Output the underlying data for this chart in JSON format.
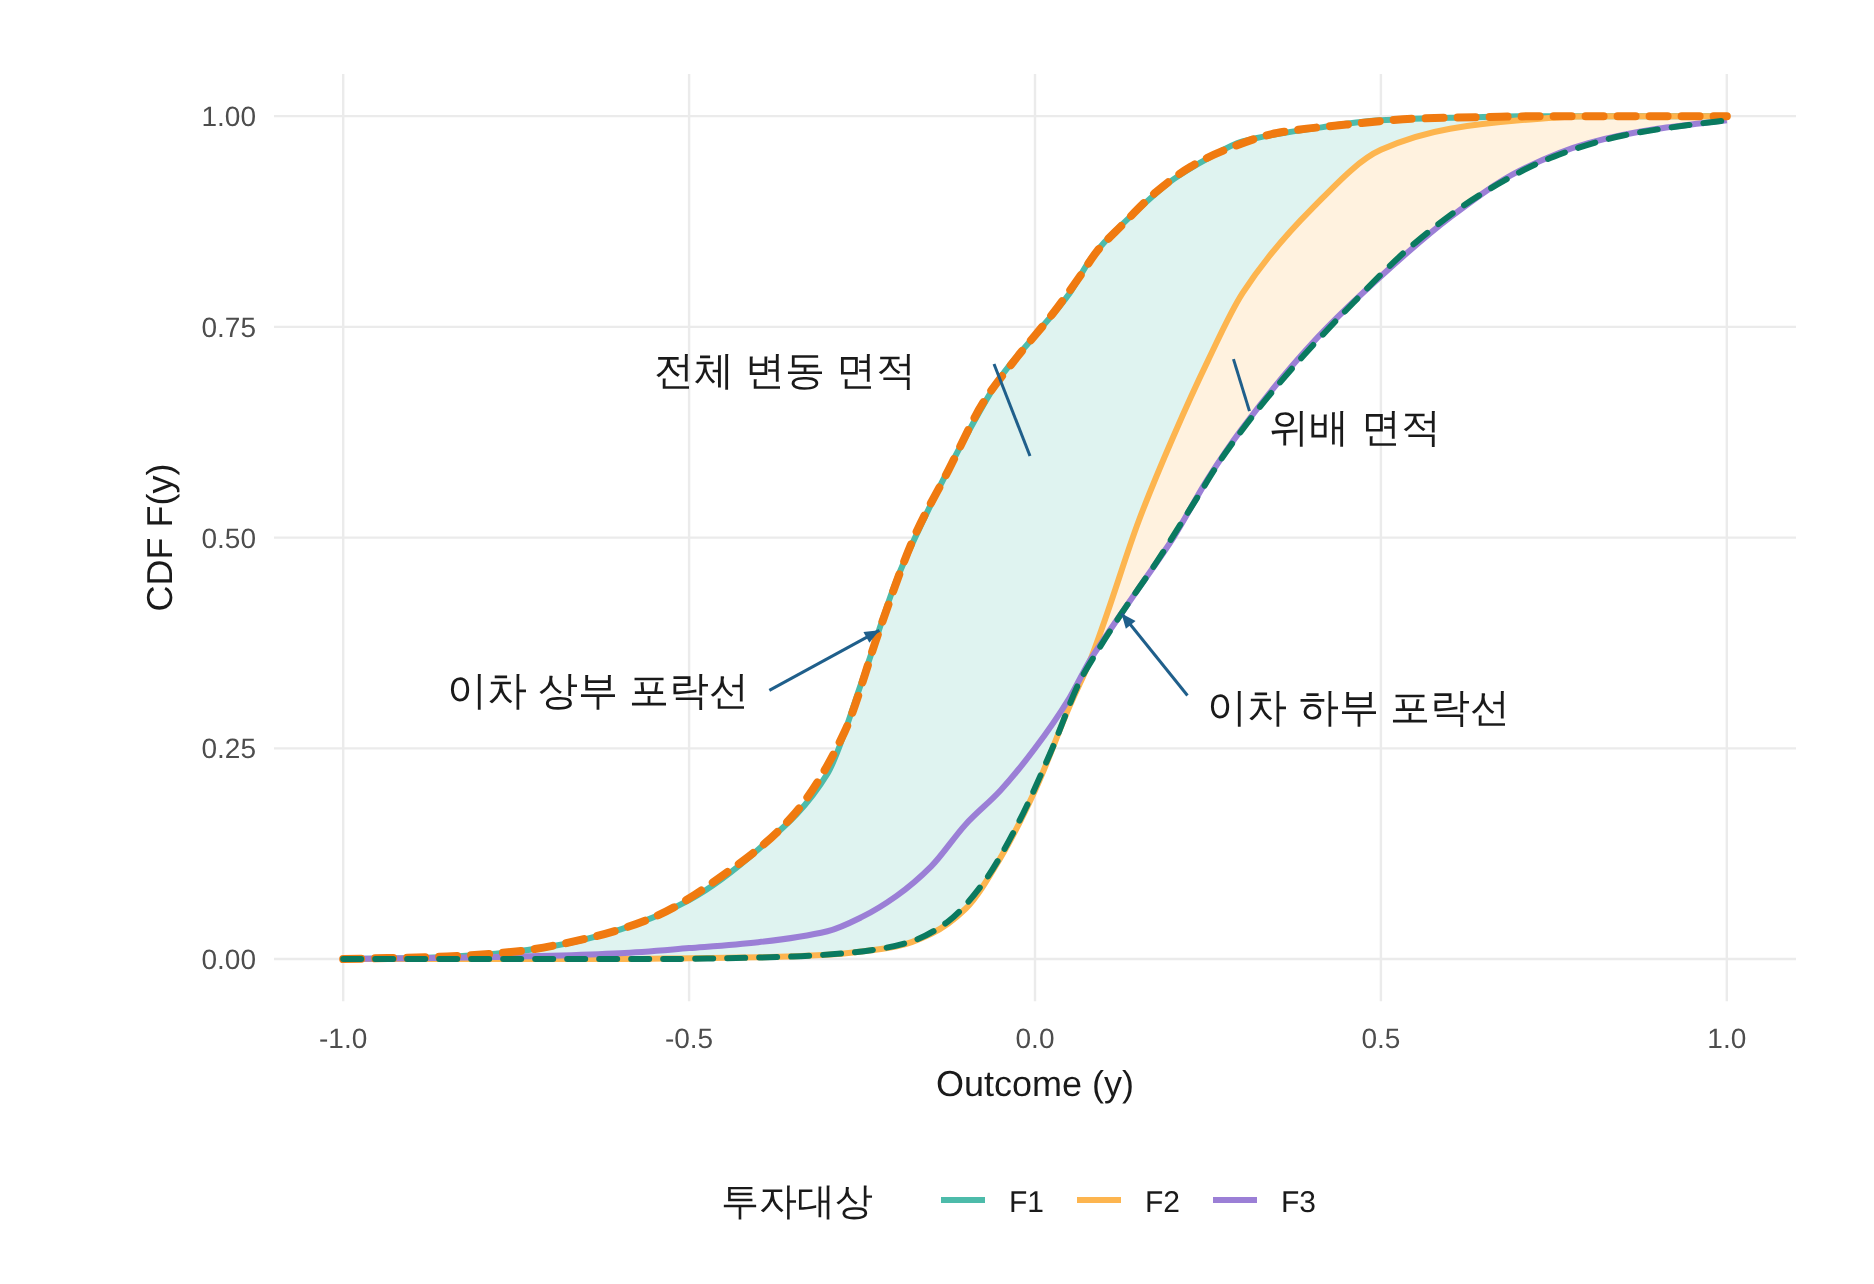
{
  "chart_data": {
    "type": "line",
    "xlabel": "Outcome (y)",
    "ylabel": "CDF F(y)",
    "legend_title": "투자대상",
    "legend": "bottom",
    "grid": true,
    "x": [
      -1,
      -0.9,
      -0.8,
      -0.7,
      -0.6,
      -0.5,
      -0.4,
      -0.3,
      -0.25,
      -0.2,
      -0.15,
      -0.1,
      -0.05,
      0,
      0.05,
      0.08,
      0.1,
      0.15,
      0.2,
      0.25,
      0.3,
      0.4,
      0.5,
      0.6,
      0.7,
      0.8,
      0.9,
      1
    ],
    "xlim": [
      -1.1,
      1.1
    ],
    "ylim": [
      -0.05,
      1.05
    ],
    "xticks": [
      {
        "value": -1,
        "label": "-1.0"
      },
      {
        "value": -0.5,
        "label": "-0.5"
      },
      {
        "value": 0,
        "label": "0.0"
      },
      {
        "value": 0.5,
        "label": "0.5"
      },
      {
        "value": 1,
        "label": "1.0"
      }
    ],
    "yticks": [
      {
        "value": 0,
        "label": "0.00"
      },
      {
        "value": 0.25,
        "label": "0.25"
      },
      {
        "value": 0.5,
        "label": "0.50"
      },
      {
        "value": 0.75,
        "label": "0.75"
      },
      {
        "value": 1,
        "label": "1.00"
      }
    ],
    "series": [
      {
        "name": "F1",
        "color": "#4dbbaa",
        "values": [
          0,
          0.001,
          0.005,
          0.015,
          0.035,
          0.07,
          0.13,
          0.22,
          0.33,
          0.45,
          0.54,
          0.62,
          0.69,
          0.74,
          0.79,
          0.83,
          0.85,
          0.89,
          0.925,
          0.95,
          0.97,
          0.985,
          0.995,
          0.998,
          1,
          1,
          1,
          1
        ],
        "lower": [
          0,
          0,
          0,
          0,
          0,
          0.001,
          0.002,
          0.005,
          0.009,
          0.015,
          0.03,
          0.06,
          0.12,
          0.2,
          0.3,
          0.355,
          0.38,
          0.44,
          0.5,
          0.57,
          0.63,
          0.73,
          0.81,
          0.88,
          0.935,
          0.968,
          0.985,
          0.995
        ],
        "upper": [
          0,
          0.001,
          0.005,
          0.015,
          0.035,
          0.07,
          0.13,
          0.22,
          0.33,
          0.45,
          0.54,
          0.62,
          0.69,
          0.74,
          0.79,
          0.83,
          0.85,
          0.89,
          0.925,
          0.95,
          0.97,
          0.985,
          0.995,
          0.998,
          1,
          1,
          1,
          1
        ]
      },
      {
        "name": "F2",
        "color": "#fdb54f",
        "values": [
          0,
          0,
          0,
          0,
          0,
          0.001,
          0.002,
          0.005,
          0.009,
          0.015,
          0.03,
          0.06,
          0.12,
          0.2,
          0.3,
          0.355,
          0.4,
          0.52,
          0.62,
          0.71,
          0.79,
          0.89,
          0.96,
          0.985,
          0.995,
          1,
          1,
          1
        ],
        "lower": [
          null,
          null,
          null,
          null,
          null,
          null,
          null,
          null,
          null,
          null,
          null,
          null,
          null,
          null,
          null,
          0.355,
          0.38,
          0.44,
          0.5,
          0.57,
          0.63,
          0.73,
          0.81,
          0.88,
          0.935,
          0.968,
          0.985,
          0.995
        ],
        "upper": [
          null,
          null,
          null,
          null,
          null,
          null,
          null,
          null,
          null,
          null,
          null,
          null,
          null,
          null,
          null,
          0.355,
          0.4,
          0.52,
          0.62,
          0.71,
          0.79,
          0.89,
          0.96,
          0.985,
          0.995,
          1,
          1,
          1
        ]
      },
      {
        "name": "F3",
        "color": "#9b7fd6",
        "values": [
          0,
          0.001,
          0.002,
          0.004,
          0.007,
          0.013,
          0.02,
          0.033,
          0.05,
          0.075,
          0.11,
          0.16,
          0.2,
          0.25,
          0.31,
          0.355,
          0.38,
          0.44,
          0.5,
          0.57,
          0.63,
          0.73,
          0.81,
          0.88,
          0.935,
          0.968,
          0.985,
          0.995
        ]
      },
      {
        "color": "#f07a10",
        "line_style": "dashed",
        "x": [
          -1,
          -0.85,
          -0.75,
          -0.65,
          -0.55,
          -0.45,
          -0.35,
          -0.275,
          -0.225,
          -0.175,
          -0.125,
          -0.075,
          -0.025,
          0.025,
          0.065,
          0.09,
          0.125,
          0.175,
          0.225,
          0.275,
          0.35,
          0.45,
          0.55,
          0.65,
          0.75,
          0.85,
          0.95,
          1
        ],
        "values": [
          0,
          0.003,
          0.009,
          0.024,
          0.05,
          0.1,
          0.17,
          0.27,
          0.39,
          0.5,
          0.58,
          0.66,
          0.715,
          0.765,
          0.81,
          0.84,
          0.87,
          0.91,
          0.94,
          0.96,
          0.98,
          0.99,
          0.997,
          0.999,
          1,
          1,
          1,
          1
        ]
      },
      {
        "color": "#0a7a60",
        "line_style": "dashed",
        "x": [
          -1,
          -0.85,
          -0.75,
          -0.65,
          -0.55,
          -0.45,
          -0.35,
          -0.275,
          -0.225,
          -0.175,
          -0.125,
          -0.075,
          -0.025,
          0.025,
          0.065,
          0.09,
          0.125,
          0.175,
          0.225,
          0.275,
          0.35,
          0.45,
          0.55,
          0.65,
          0.75,
          0.85,
          0.95,
          1
        ],
        "values": [
          0,
          0,
          0,
          0,
          0,
          0.001,
          0.003,
          0.007,
          0.012,
          0.022,
          0.045,
          0.09,
          0.16,
          0.25,
          0.33,
          0.365,
          0.41,
          0.47,
          0.535,
          0.6,
          0.68,
          0.77,
          0.85,
          0.91,
          0.952,
          0.977,
          0.99,
          0.995
        ]
      }
    ],
    "annotations": [
      "전체 변동 면적",
      {
        "text": "위배 면적",
        "x": 0.31,
        "y": 0.65
      },
      {
        "text": "이차 상부 포락선",
        "x": -0.225,
        "y": 0.39
      },
      {
        "text": "이차 하부 포락선",
        "x": 0.125,
        "y": 0.41
      }
    ]
  }
}
